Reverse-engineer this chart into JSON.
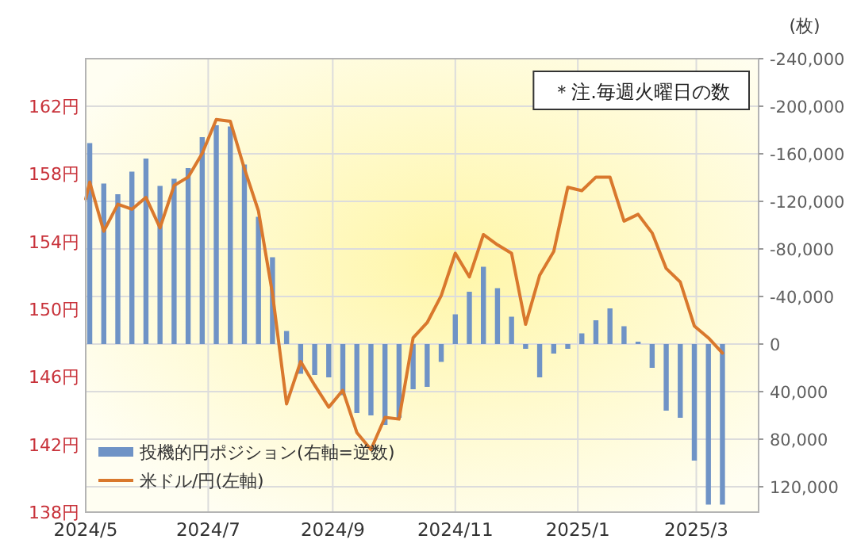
{
  "chart_data": {
    "type": "bar",
    "annotations": [
      "＊注.毎週火曜日の数"
    ],
    "y2label": "(枚)",
    "xlim": [
      "2024-05-01",
      "2025-04-01"
    ],
    "xticks": [
      {
        "value": "2024-05",
        "label": "2024/5"
      },
      {
        "value": "2024-07",
        "label": "2024/7"
      },
      {
        "value": "2024-09",
        "label": "2024/9"
      },
      {
        "value": "2024-11",
        "label": "2024/11"
      },
      {
        "value": "2025-01",
        "label": "2025/1"
      },
      {
        "value": "2025-03",
        "label": "2025/3"
      }
    ],
    "ylim": [
      138,
      164.8
    ],
    "yticks": [
      {
        "value": 138,
        "label": "138円"
      },
      {
        "value": 142,
        "label": "142円"
      },
      {
        "value": 146,
        "label": "146円"
      },
      {
        "value": 150,
        "label": "150円"
      },
      {
        "value": 154,
        "label": "154円"
      },
      {
        "value": 158,
        "label": "158円"
      },
      {
        "value": 162,
        "label": "162円"
      }
    ],
    "y2lim": [
      141333,
      -240000
    ],
    "y2ticks": [
      {
        "value": -240000,
        "label": "-240,000"
      },
      {
        "value": -200000,
        "label": "-200,000"
      },
      {
        "value": -160000,
        "label": "-160,000"
      },
      {
        "value": -120000,
        "label": "-120,000"
      },
      {
        "value": -80000,
        "label": "-80,000"
      },
      {
        "value": -40000,
        "label": "-40,000"
      },
      0,
      {
        "value": 40000,
        "label": "40,000"
      },
      {
        "value": 80000,
        "label": "80,000"
      },
      {
        "value": 120000,
        "label": "120,000"
      }
    ],
    "grid": true,
    "legend": "bottom left",
    "x": [
      "2024-05-03",
      "2024-05-10",
      "2024-05-17",
      "2024-05-24",
      "2024-05-31",
      "2024-06-07",
      "2024-06-14",
      "2024-06-21",
      "2024-06-28",
      "2024-07-05",
      "2024-07-12",
      "2024-07-19",
      "2024-07-26",
      "2024-08-02",
      "2024-08-09",
      "2024-08-16",
      "2024-08-23",
      "2024-08-30",
      "2024-09-06",
      "2024-09-13",
      "2024-09-20",
      "2024-09-27",
      "2024-10-04",
      "2024-10-11",
      "2024-10-18",
      "2024-10-25",
      "2024-11-01",
      "2024-11-08",
      "2024-11-15",
      "2024-11-22",
      "2024-11-29",
      "2024-12-06",
      "2024-12-13",
      "2024-12-20",
      "2024-12-27",
      "2025-01-03",
      "2025-01-10",
      "2025-01-17",
      "2025-01-24",
      "2025-01-31",
      "2025-02-07",
      "2025-02-14",
      "2025-02-21",
      "2025-02-28",
      "2025-03-07",
      "2025-03-14"
    ],
    "series": [
      {
        "name": "投機的円ポジション(右軸=逆数)",
        "axis": "y2",
        "color": "#6f93c6",
        "values": [
          -169000,
          -135000,
          -126000,
          -145000,
          -156000,
          -133000,
          -139000,
          -148000,
          -174000,
          -184000,
          -183000,
          -151000,
          -107000,
          -73000,
          -11000,
          25000,
          26000,
          28000,
          43000,
          58000,
          60000,
          68000,
          62000,
          38000,
          36000,
          15000,
          -25000,
          -44000,
          -65000,
          -47000,
          -23000,
          4000,
          28000,
          8000,
          4000,
          -9000,
          -20000,
          -30000,
          -15000,
          -2000,
          20000,
          56000,
          62000,
          98000,
          135000,
          135000
        ]
      },
      {
        "name": "米ドル/円(左軸)",
        "type": "line",
        "axis": "y",
        "color": "#d9782d",
        "x": [
          "2024-05-01",
          "2024-05-03",
          "2024-05-10",
          "2024-05-17",
          "2024-05-24",
          "2024-05-31",
          "2024-06-07",
          "2024-06-14",
          "2024-06-21",
          "2024-06-28",
          "2024-07-05",
          "2024-07-12",
          "2024-07-19",
          "2024-07-26",
          "2024-08-02",
          "2024-08-09",
          "2024-08-16",
          "2024-08-23",
          "2024-08-30",
          "2024-09-06",
          "2024-09-13",
          "2024-09-20",
          "2024-09-27",
          "2024-10-04",
          "2024-10-11",
          "2024-10-18",
          "2024-10-25",
          "2024-11-01",
          "2024-11-08",
          "2024-11-15",
          "2024-11-22",
          "2024-11-29",
          "2024-12-06",
          "2024-12-13",
          "2024-12-20",
          "2024-12-27",
          "2025-01-03",
          "2025-01-10",
          "2025-01-17",
          "2025-01-24",
          "2025-01-31",
          "2025-02-07",
          "2025-02-14",
          "2025-02-21",
          "2025-02-28",
          "2025-03-07",
          "2025-03-14"
        ],
        "values": [
          156.5,
          157.5,
          154.6,
          156.2,
          155.9,
          156.6,
          154.8,
          157.3,
          157.8,
          159.2,
          161.2,
          161.1,
          158.3,
          155.8,
          150.9,
          144.4,
          146.9,
          145.5,
          144.2,
          145.2,
          142.7,
          141.7,
          143.6,
          143.5,
          148.3,
          149.2,
          150.8,
          153.3,
          151.9,
          154.4,
          153.8,
          153.3,
          149.1,
          152.0,
          153.4,
          157.2,
          157.0,
          157.8,
          157.8,
          155.2,
          155.6,
          154.5,
          152.4,
          151.6,
          149.0,
          148.3,
          147.4
        ]
      }
    ]
  }
}
